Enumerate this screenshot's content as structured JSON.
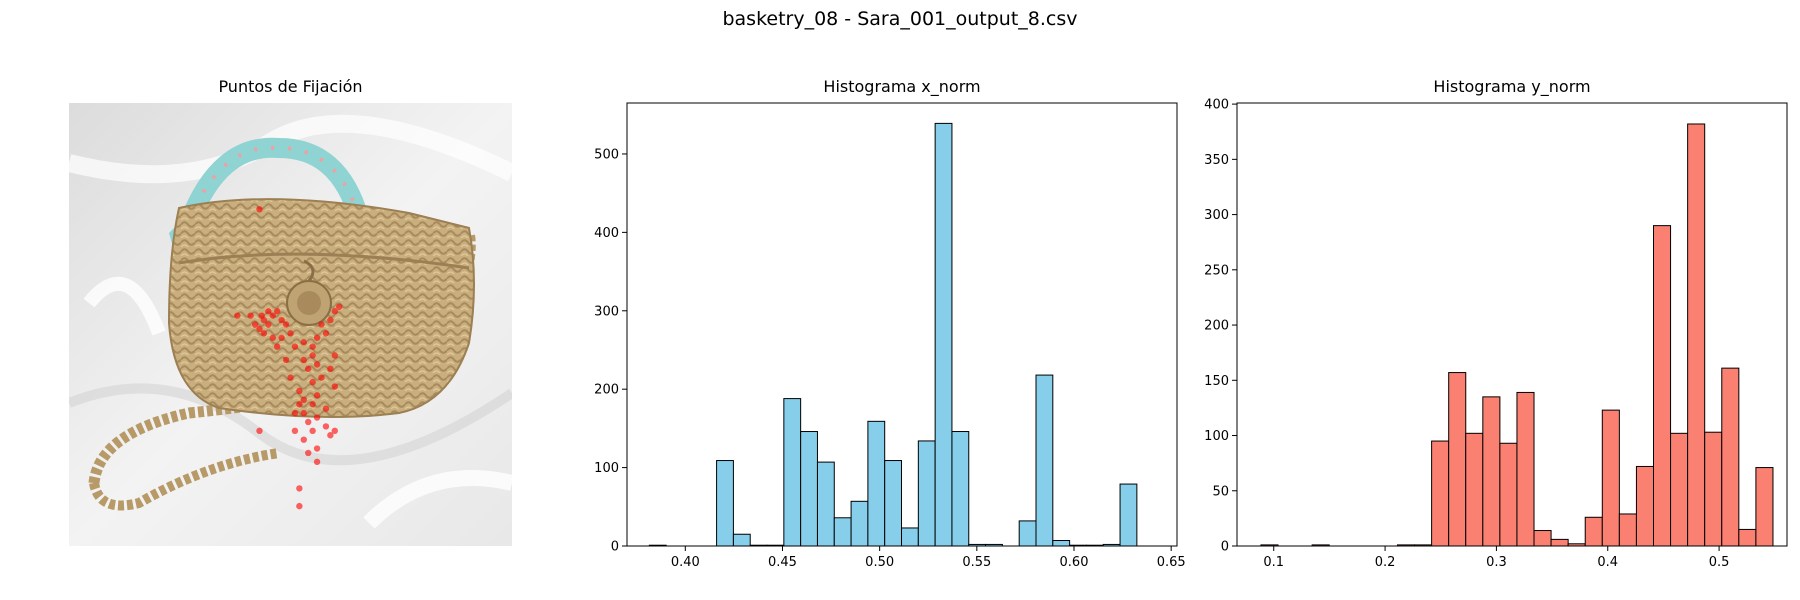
{
  "figure": {
    "suptitle": "basketry_08 - Sara_001_output_8.csv"
  },
  "panels": {
    "fixation_title": "Puntos de Fijación",
    "x_title": "Histograma x_norm",
    "y_title": "Histograma y_norm"
  },
  "colors": {
    "x_bar": "#87ceeb",
    "y_bar": "#fa8072",
    "fixation_point": "#ff0000",
    "bar_edge": "#000000"
  },
  "chart_data": [
    {
      "type": "scatter",
      "title": "Puntos de Fijación",
      "description_of_points": "fixation points overlaid on image",
      "axes": "off",
      "points": [
        {
          "x": 0.435,
          "y": 0.48
        },
        {
          "x": 0.42,
          "y": 0.5
        },
        {
          "x": 0.43,
          "y": 0.51
        },
        {
          "x": 0.44,
          "y": 0.49
        },
        {
          "x": 0.45,
          "y": 0.5
        },
        {
          "x": 0.46,
          "y": 0.48
        },
        {
          "x": 0.47,
          "y": 0.47
        },
        {
          "x": 0.48,
          "y": 0.49
        },
        {
          "x": 0.49,
          "y": 0.5
        },
        {
          "x": 0.46,
          "y": 0.53
        },
        {
          "x": 0.47,
          "y": 0.55
        },
        {
          "x": 0.5,
          "y": 0.52
        },
        {
          "x": 0.51,
          "y": 0.55
        },
        {
          "x": 0.53,
          "y": 0.54
        },
        {
          "x": 0.55,
          "y": 0.55
        },
        {
          "x": 0.57,
          "y": 0.5
        },
        {
          "x": 0.59,
          "y": 0.49
        },
        {
          "x": 0.6,
          "y": 0.47
        },
        {
          "x": 0.61,
          "y": 0.46
        },
        {
          "x": 0.58,
          "y": 0.52
        },
        {
          "x": 0.56,
          "y": 0.53
        },
        {
          "x": 0.54,
          "y": 0.6
        },
        {
          "x": 0.55,
          "y": 0.63
        },
        {
          "x": 0.56,
          "y": 0.66
        },
        {
          "x": 0.52,
          "y": 0.68
        },
        {
          "x": 0.53,
          "y": 0.7
        },
        {
          "x": 0.54,
          "y": 0.72
        },
        {
          "x": 0.55,
          "y": 0.74
        },
        {
          "x": 0.56,
          "y": 0.71
        },
        {
          "x": 0.58,
          "y": 0.69
        },
        {
          "x": 0.58,
          "y": 0.73
        },
        {
          "x": 0.59,
          "y": 0.75
        },
        {
          "x": 0.6,
          "y": 0.74
        },
        {
          "x": 0.53,
          "y": 0.76
        },
        {
          "x": 0.51,
          "y": 0.74
        },
        {
          "x": 0.52,
          "y": 0.65
        },
        {
          "x": 0.49,
          "y": 0.58
        },
        {
          "x": 0.5,
          "y": 0.62
        },
        {
          "x": 0.57,
          "y": 0.62
        },
        {
          "x": 0.59,
          "y": 0.6
        },
        {
          "x": 0.6,
          "y": 0.57
        },
        {
          "x": 0.6,
          "y": 0.64
        },
        {
          "x": 0.54,
          "y": 0.79
        },
        {
          "x": 0.56,
          "y": 0.78
        },
        {
          "x": 0.43,
          "y": 0.74
        },
        {
          "x": 0.56,
          "y": 0.81
        },
        {
          "x": 0.52,
          "y": 0.87
        },
        {
          "x": 0.52,
          "y": 0.91
        },
        {
          "x": 0.44,
          "y": 0.52
        },
        {
          "x": 0.48,
          "y": 0.53
        },
        {
          "x": 0.45,
          "y": 0.47
        },
        {
          "x": 0.41,
          "y": 0.48
        },
        {
          "x": 0.38,
          "y": 0.48
        },
        {
          "x": 0.43,
          "y": 0.24
        },
        {
          "x": 0.55,
          "y": 0.57
        },
        {
          "x": 0.53,
          "y": 0.58
        },
        {
          "x": 0.56,
          "y": 0.59
        },
        {
          "x": 0.51,
          "y": 0.7
        },
        {
          "x": 0.53,
          "y": 0.67
        },
        {
          "x": 0.55,
          "y": 0.68
        }
      ]
    },
    {
      "type": "bar",
      "title": "Histograma x_norm",
      "xlim": [
        0.37,
        0.653
      ],
      "ylim": [
        0,
        565
      ],
      "xticks": [
        "0.40",
        "0.45",
        "0.50",
        "0.55",
        "0.60",
        "0.65"
      ],
      "yticks": [
        "0",
        "100",
        "200",
        "300",
        "400",
        "500"
      ],
      "xtick_values": [
        0.4,
        0.45,
        0.5,
        0.55,
        0.6,
        0.65
      ],
      "ytick_values": [
        0,
        100,
        200,
        300,
        400,
        500
      ],
      "bin_start": 0.3815,
      "bin_width": 0.00865,
      "values": [
        1,
        0,
        0,
        0,
        109,
        15,
        1,
        1,
        188,
        146,
        107,
        36,
        57,
        159,
        109,
        23,
        134,
        539,
        146,
        2,
        2,
        0,
        32,
        218,
        7,
        1,
        1,
        2,
        79
      ]
    },
    {
      "type": "bar",
      "title": "Histograma y_norm",
      "xlim": [
        0.067,
        0.561
      ],
      "ylim": [
        0,
        401
      ],
      "xticks": [
        "0.1",
        "0.2",
        "0.3",
        "0.4",
        "0.5"
      ],
      "yticks": [
        "0",
        "50",
        "100",
        "150",
        "200",
        "250",
        "300",
        "350",
        "400"
      ],
      "xtick_values": [
        0.1,
        0.2,
        0.3,
        0.4,
        0.5
      ],
      "ytick_values": [
        0,
        50,
        100,
        150,
        200,
        250,
        300,
        350,
        400
      ],
      "bin_start": 0.0885,
      "bin_width": 0.01533,
      "values": [
        1,
        0,
        0,
        1,
        0,
        0,
        0,
        0,
        1,
        1,
        95,
        157,
        102,
        135,
        93,
        139,
        14,
        6,
        2,
        26,
        123,
        29,
        72,
        290,
        102,
        382,
        103,
        161,
        15,
        71
      ]
    }
  ]
}
